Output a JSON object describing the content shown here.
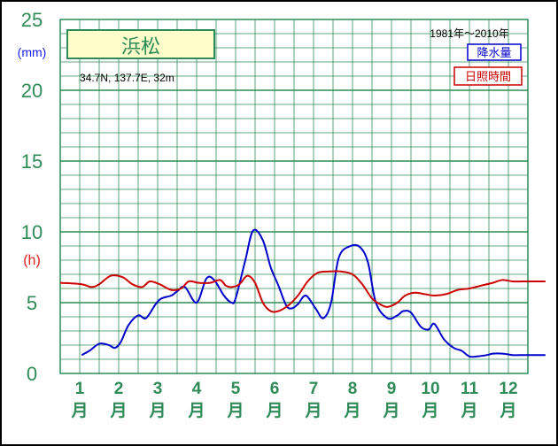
{
  "chart_data": {
    "type": "line",
    "title": "浜松",
    "location": "34.7N,  137.7E,  32m",
    "period": "1981年～2010年",
    "y_unit_left": "(mm)",
    "y_unit_right": "(h)",
    "ylim": [
      0,
      25
    ],
    "yticks": [
      "0",
      "5",
      "10",
      "15",
      "20",
      "25"
    ],
    "categories": [
      "1\n月",
      "2\n月",
      "3\n月",
      "4\n月",
      "5\n月",
      "6\n月",
      "7\n月",
      "8\n月",
      "9\n月",
      "10\n月",
      "11\n月",
      "12\n月"
    ],
    "series": [
      {
        "name": "降水量",
        "color": "#0000cc",
        "x": [
          0.55,
          0.75,
          1.0,
          1.25,
          1.4,
          1.55,
          1.75,
          2.0,
          2.2,
          2.45,
          2.6,
          2.85,
          3.0,
          3.2,
          3.5,
          3.75,
          3.95,
          4.2,
          4.4,
          4.5,
          4.75,
          4.95,
          5.2,
          5.4,
          5.6,
          5.8,
          5.95,
          6.1,
          6.3,
          6.55,
          6.75,
          6.95,
          7.15,
          7.45,
          7.7,
          7.9,
          8.1,
          8.4,
          8.65,
          8.8,
          9.0,
          9.25,
          9.45,
          9.6,
          9.85,
          10.1,
          10.3,
          10.5,
          10.7,
          10.95,
          11.1,
          11.35,
          11.6,
          11.85,
          12.05,
          12.3,
          12.45
        ],
        "values": [
          1.3,
          1.6,
          2.1,
          2.0,
          1.8,
          2.2,
          3.4,
          4.1,
          3.9,
          4.9,
          5.3,
          5.5,
          5.8,
          6.1,
          5.0,
          6.7,
          6.6,
          5.5,
          5.0,
          5.3,
          8.0,
          10.1,
          9.4,
          7.5,
          6.2,
          4.8,
          4.6,
          4.9,
          5.5,
          4.6,
          3.9,
          5.0,
          8.2,
          9.0,
          8.9,
          7.8,
          5.0,
          3.9,
          4.1,
          4.4,
          4.3,
          3.3,
          3.1,
          3.5,
          2.4,
          1.8,
          1.6,
          1.2,
          1.2,
          1.3,
          1.4,
          1.4,
          1.3,
          1.3,
          1.3,
          1.3,
          1.3
        ]
      },
      {
        "name": "日照時間",
        "color": "#cc0000",
        "x": [
          0.0,
          0.55,
          0.8,
          1.0,
          1.3,
          1.6,
          1.85,
          2.1,
          2.3,
          2.55,
          2.85,
          3.1,
          3.3,
          3.55,
          3.85,
          4.1,
          4.25,
          4.4,
          4.6,
          4.8,
          5.0,
          5.2,
          5.4,
          5.6,
          5.85,
          6.1,
          6.35,
          6.6,
          6.9,
          7.2,
          7.5,
          7.75,
          8.0,
          8.2,
          8.4,
          8.65,
          8.85,
          9.1,
          9.35,
          9.6,
          9.9,
          10.2,
          10.5,
          10.8,
          11.1,
          11.35,
          11.6,
          11.85,
          12.05,
          12.3,
          12.45
        ],
        "values": [
          6.4,
          6.3,
          6.1,
          6.3,
          6.9,
          6.8,
          6.3,
          6.1,
          6.5,
          6.3,
          5.9,
          6.0,
          6.5,
          6.4,
          6.4,
          6.6,
          6.2,
          6.1,
          6.3,
          6.9,
          6.4,
          5.0,
          4.4,
          4.4,
          4.8,
          5.5,
          6.5,
          7.1,
          7.2,
          7.2,
          7.0,
          6.3,
          5.3,
          4.9,
          4.7,
          5.0,
          5.5,
          5.7,
          5.6,
          5.5,
          5.6,
          5.9,
          6.0,
          6.2,
          6.4,
          6.6,
          6.5,
          6.5,
          6.5,
          6.5,
          6.5
        ]
      }
    ]
  }
}
